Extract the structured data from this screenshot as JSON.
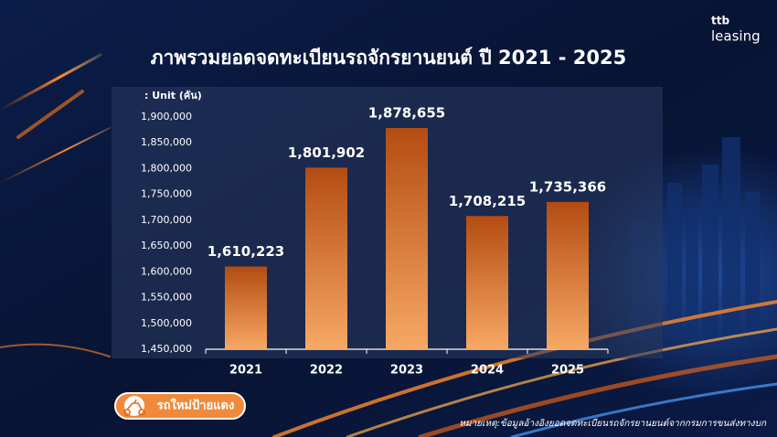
{
  "chart_data": {
    "type": "bar",
    "title": "ภาพรวมยอดจดทะเบียนรถจักรยานยนต์ ปี 2021 - 2025",
    "unit_label": ": Unit (คัน)",
    "brand": "ttb",
    "brand_product": "leasing",
    "badge": "รถใหม่ป้ายแดง",
    "footnote": "หมายเหตุ:ข้อมูลอ้างอิงยอดจดทะเบียนรถจักรยานยนต์จากกรมการขนส่งทางบก",
    "categories": [
      "2021",
      "2022",
      "2023",
      "2024",
      "2025"
    ],
    "values": [
      1610223,
      1801902,
      1878655,
      1708215,
      1735366
    ],
    "value_labels": [
      "1,610,223",
      "1,801,902",
      "1,878,655",
      "1,708,215",
      "1,735,366"
    ],
    "color": "#e8782c",
    "ylim": [
      1450000,
      1900000
    ],
    "yticks": [
      {
        "value": 1450000,
        "label": "1,450,000"
      },
      {
        "value": 1500000,
        "label": "1,500,000"
      },
      {
        "value": 1550000,
        "label": "1,550,000"
      },
      {
        "value": 1600000,
        "label": "1,600,000"
      },
      {
        "value": 1650000,
        "label": "1,650,000"
      },
      {
        "value": 1700000,
        "label": "1,700,000"
      },
      {
        "value": 1750000,
        "label": "1,750,000"
      },
      {
        "value": 1800000,
        "label": "1,800,000"
      },
      {
        "value": 1850000,
        "label": "1,850,000"
      },
      {
        "value": 1900000,
        "label": "1,900,000"
      }
    ],
    "grid": false
  }
}
